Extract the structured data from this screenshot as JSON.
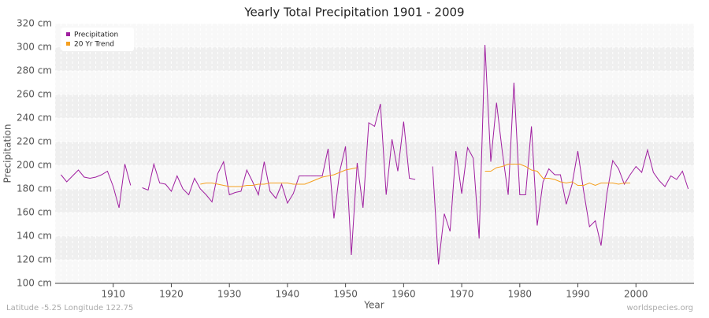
{
  "chart_data": {
    "type": "line",
    "title": "Yearly Total Precipitation 1901 - 2009",
    "x_label": "Year",
    "y_label": "Precipitation",
    "footer_left": "Latitude -5.25 Longitude 122.75",
    "footer_right": "worldspecies.org",
    "x": [
      1901,
      1902,
      1903,
      1904,
      1905,
      1906,
      1907,
      1908,
      1909,
      1910,
      1911,
      1912,
      1913,
      1914,
      1915,
      1916,
      1917,
      1918,
      1919,
      1920,
      1921,
      1922,
      1923,
      1924,
      1925,
      1926,
      1927,
      1928,
      1929,
      1930,
      1931,
      1932,
      1933,
      1934,
      1935,
      1936,
      1937,
      1938,
      1939,
      1940,
      1941,
      1942,
      1943,
      1944,
      1945,
      1946,
      1947,
      1948,
      1949,
      1950,
      1951,
      1952,
      1953,
      1954,
      1955,
      1956,
      1957,
      1958,
      1959,
      1960,
      1961,
      1962,
      1963,
      1964,
      1965,
      1966,
      1967,
      1968,
      1969,
      1970,
      1971,
      1972,
      1973,
      1974,
      1975,
      1976,
      1977,
      1978,
      1979,
      1980,
      1981,
      1982,
      1983,
      1984,
      1985,
      1986,
      1987,
      1988,
      1989,
      1990,
      1991,
      1992,
      1993,
      1994,
      1995,
      1996,
      1997,
      1998,
      1999,
      2000,
      2001,
      2002,
      2003,
      2004,
      2005,
      2006,
      2007,
      2008,
      2009
    ],
    "series": [
      {
        "name": "Precipitation",
        "color": "#a020a0",
        "values": [
          192,
          186,
          191,
          196,
          190,
          189,
          190,
          192,
          195,
          182,
          164,
          201,
          183,
          null,
          181,
          179,
          201,
          185,
          184,
          178,
          191,
          180,
          175,
          189,
          180,
          175,
          169,
          193,
          203,
          175,
          177,
          178,
          196,
          186,
          175,
          203,
          178,
          172,
          184,
          168,
          176,
          191,
          191,
          191,
          191,
          191,
          214,
          155,
          195,
          216,
          124,
          202,
          164,
          236,
          233,
          252,
          175,
          222,
          195,
          237,
          189,
          188,
          null,
          null,
          199,
          116,
          159,
          144,
          212,
          176,
          215,
          206,
          138,
          302,
          203,
          253,
          211,
          175,
          270,
          175,
          175,
          233,
          149,
          186,
          197,
          192,
          192,
          167,
          184,
          212,
          178,
          148,
          153,
          132,
          176,
          204,
          197,
          184,
          192,
          199,
          194,
          213,
          194,
          187,
          182,
          191,
          188,
          195,
          180
        ]
      },
      {
        "name": "20 Yr Trend",
        "color": "#f5a020",
        "values": [
          null,
          null,
          null,
          null,
          null,
          null,
          null,
          null,
          null,
          null,
          null,
          null,
          null,
          null,
          null,
          null,
          null,
          null,
          null,
          null,
          null,
          null,
          null,
          null,
          184,
          185,
          185,
          184,
          183,
          182,
          182,
          182,
          183,
          183,
          184,
          184,
          185,
          185,
          185,
          185,
          184,
          184,
          184,
          186,
          188,
          190,
          191,
          192,
          194,
          196,
          197,
          198,
          null,
          null,
          null,
          null,
          null,
          null,
          null,
          null,
          null,
          null,
          null,
          null,
          null,
          null,
          null,
          null,
          null,
          null,
          null,
          null,
          null,
          195,
          195,
          198,
          199,
          201,
          201,
          201,
          199,
          196,
          195,
          189,
          189,
          188,
          186,
          185,
          186,
          183,
          183,
          185,
          183,
          185,
          185,
          185,
          184,
          185,
          185,
          null,
          null,
          null,
          null,
          null,
          null,
          null,
          null,
          null,
          null
        ]
      }
    ],
    "xlim": [
      1900,
      2010
    ],
    "xticks": [
      1910,
      1920,
      1930,
      1940,
      1950,
      1960,
      1970,
      1980,
      1990,
      2000
    ],
    "ylim": [
      100,
      320
    ],
    "yticks": [
      {
        "value": 100,
        "label": "100 cm"
      },
      {
        "value": 120,
        "label": "120 cm"
      },
      {
        "value": 140,
        "label": "140 cm"
      },
      {
        "value": 160,
        "label": "160 cm"
      },
      {
        "value": 180,
        "label": "180 cm"
      },
      {
        "value": 200,
        "label": "200 cm"
      },
      {
        "value": 220,
        "label": "220 cm"
      },
      {
        "value": 240,
        "label": "240 cm"
      },
      {
        "value": 260,
        "label": "260 cm"
      },
      {
        "value": 280,
        "label": "280 cm"
      },
      {
        "value": 300,
        "label": "300 cm"
      },
      {
        "value": 320,
        "label": "320 cm"
      }
    ],
    "grid": true,
    "legend": "top-left"
  }
}
